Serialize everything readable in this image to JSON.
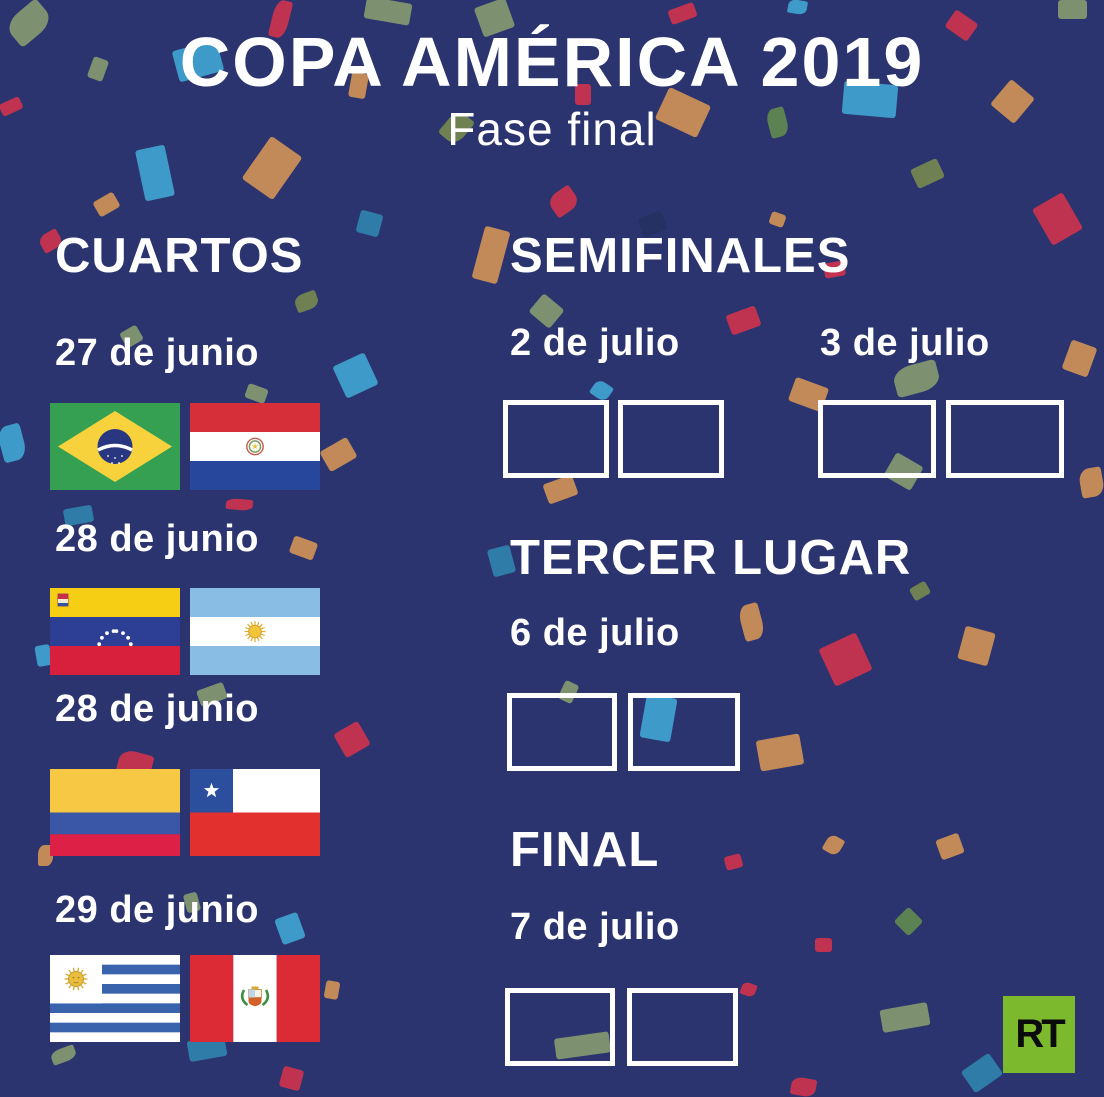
{
  "title": "COPA AMÉRICA 2019",
  "subtitle": "Fase final",
  "sections": {
    "cuartos": {
      "heading": "CUARTOS",
      "matches": [
        {
          "date": "27 de junio",
          "flags": [
            "brasil",
            "paraguay"
          ]
        },
        {
          "date": "28 de junio",
          "flags": [
            "venezuela",
            "argentina"
          ]
        },
        {
          "date": "28 de junio",
          "flags": [
            "colombia",
            "chile"
          ]
        },
        {
          "date": "29 de junio",
          "flags": [
            "uruguay",
            "peru"
          ]
        }
      ]
    },
    "semifinales": {
      "heading": "SEMIFINALES",
      "dates": [
        "2 de julio",
        "3 de julio"
      ]
    },
    "tercer_lugar": {
      "heading": "TERCER LUGAR",
      "date": "6 de julio"
    },
    "final": {
      "heading": "FINAL",
      "date": "7 de julio"
    }
  },
  "logo": {
    "text": "RT",
    "color": "#7cb92c"
  },
  "colors": {
    "background": "#2b346e",
    "text": "#ffffff",
    "box_border": "#ffffff",
    "rt_green": "#7cb92c",
    "confetti_palette": [
      "#bf3350",
      "#3e9ac9",
      "#2f7ca8",
      "#7d906f",
      "#6f8052",
      "#c28a58",
      "#253163",
      "#5c8152"
    ]
  }
}
